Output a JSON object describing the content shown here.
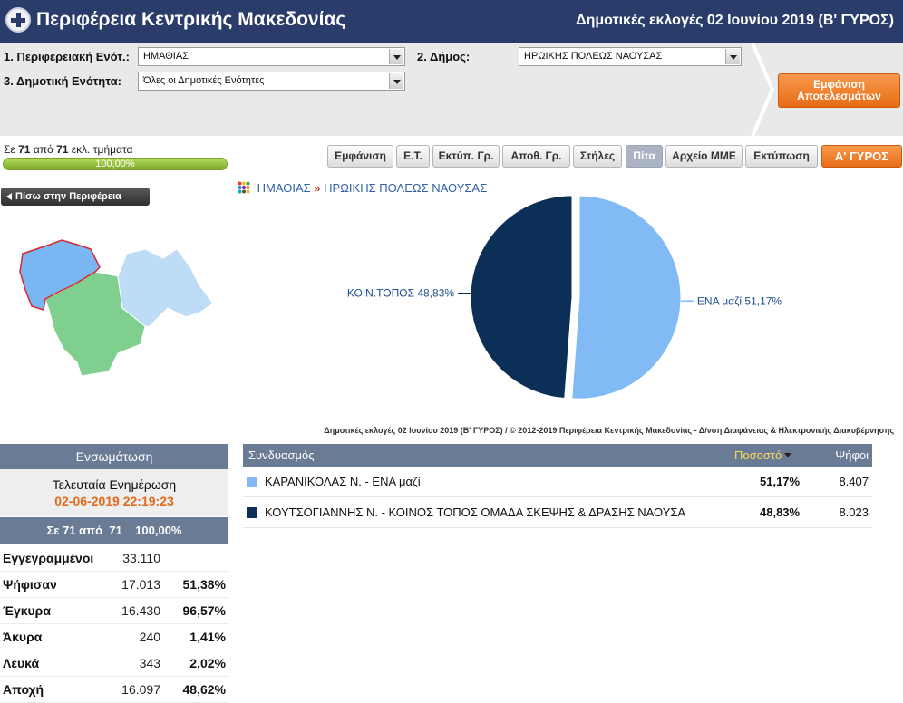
{
  "header": {
    "title": "Περιφέρεια Κεντρικής Μακεδονίας",
    "election": "Δημοτικές εκλογές 02 Ιουνίου 2019 (Β' ΓΥΡΟΣ)"
  },
  "filters": {
    "regional_unit_label": "1. Περιφερειακή Ενότ.:",
    "regional_unit_value": "ΗΜΑΘΙΑΣ",
    "municipality_label": "2. Δήμος:",
    "municipality_value": "ΗΡΩΙΚΗΣ ΠΟΛΕΩΣ ΝΑΟΥΣΑΣ",
    "municipal_unit_label": "3. Δημοτική Ενότητα:",
    "municipal_unit_value": "Όλες οι Δημοτικές Ενότητες",
    "show_results_line1": "Εμφάνιση",
    "show_results_line2": "Αποτελεσμάτων"
  },
  "progress": {
    "prefix": "Σε",
    "counted": "71",
    "middle": "από",
    "total": "71",
    "suffix": "εκλ. τμήματα",
    "percent_text": "100,00%",
    "fraction": 1.0
  },
  "toolbar": {
    "buttons": [
      "Εμφάνιση",
      "Ε.Τ.",
      "Εκτύπ. Γρ.",
      "Αποθ. Γρ.",
      "Στήλες",
      "Πίτα",
      "Αρχείο ΜΜΕ",
      "Εκτύπωση"
    ],
    "active": "Πίτα",
    "round_button": "Α' ΓΥΡΟΣ"
  },
  "back_button": "Πίσω στην Περιφέρεια",
  "breadcrumb": {
    "unit": "ΗΜΑΘΙΑΣ",
    "separator": "»",
    "municipality": "ΗΡΩΙΚΗΣ ΠΟΛΕΩΣ ΝΑΟΥΣΑΣ"
  },
  "colors": {
    "header": "#2a3c6a",
    "accent_orange": "#e86c16",
    "slice_light": "#82baf5",
    "slice_dark": "#0b2f57",
    "map_green": "#7fd08f",
    "map_light_blue": "#bfdcf6",
    "map_blue": "#7ab6f2",
    "map_outline": "#d9282f"
  },
  "chart_data": {
    "type": "pie",
    "slices": [
      {
        "label": "ΕΝΑ μαζί 51,17%",
        "value": 51.17,
        "color": "#82baf5"
      },
      {
        "label": "ΚΟΙΝ.ΤΟΠΟΣ 48,83%",
        "value": 48.83,
        "color": "#0b2f57"
      }
    ]
  },
  "copyright": "Δημοτικές εκλογές 02 Ιουνίου 2019 (Β' ΓΥΡΟΣ) / © 2012-2019 Περιφέρεια Κεντρικής Μακεδονίας - Δ/νση Διαφάνειας & Ηλεκτρονικής Διακυβέρνησης",
  "stats": {
    "title": "Ενσωμάτωση",
    "last_update_label": "Τελευταία Ενημέρωση",
    "last_update_value": "02-06-2019 22:19:23",
    "summary": "Σε 71 από  71    100,00%",
    "rows": [
      {
        "label": "Εγγεγραμμένοι",
        "value": "33.110",
        "pct": ""
      },
      {
        "label": "Ψήφισαν",
        "value": "17.013",
        "pct": "51,38%"
      },
      {
        "label": "Έγκυρα",
        "value": "16.430",
        "pct": "96,57%"
      },
      {
        "label": "Άκυρα",
        "value": "240",
        "pct": "1,41%"
      },
      {
        "label": "Λευκά",
        "value": "343",
        "pct": "2,02%"
      },
      {
        "label": "Αποχή",
        "value": "16.097",
        "pct": "48,62%"
      }
    ]
  },
  "results": {
    "col_combination": "Συνδυασμός",
    "col_percent": "Ποσοστό",
    "col_votes": "Ψήφοι",
    "rows": [
      {
        "name": "ΚΑΡΑΝΙΚΟΛΑΣ Ν. - ΕΝΑ μαζί",
        "pct": "51,17%",
        "votes": "8.407",
        "color": "#82baf5"
      },
      {
        "name": "ΚΟΥΤΣΟΓΙΑΝΝΗΣ Ν. - ΚΟΙΝΟΣ ΤΟΠΟΣ ΟΜΑΔΑ ΣΚΕΨΗΣ & ΔΡΑΣΗΣ ΝΑΟΥΣΑ",
        "pct": "48,83%",
        "votes": "8.023",
        "color": "#0b2f57"
      }
    ]
  }
}
